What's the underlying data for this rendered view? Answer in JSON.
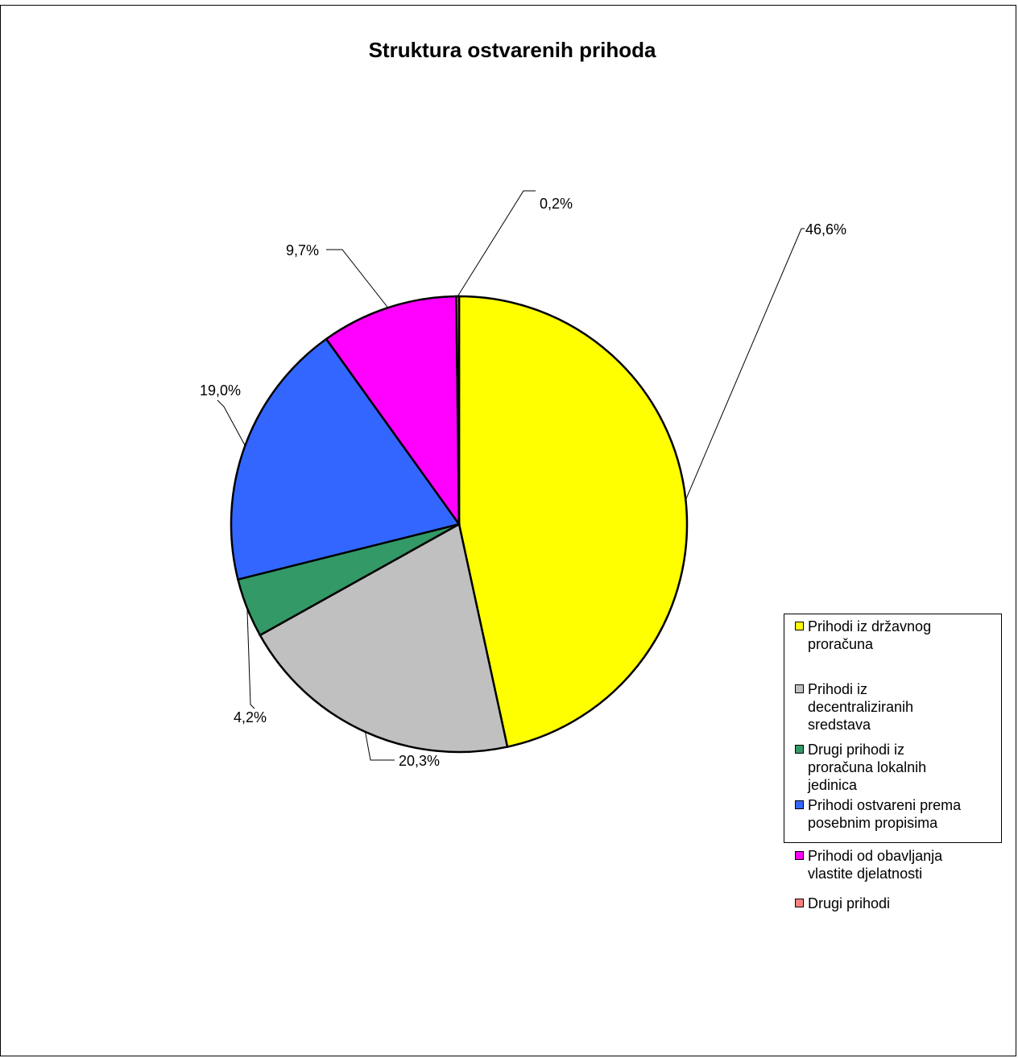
{
  "chart_data": {
    "type": "pie",
    "title": "Struktura ostvarenih prihoda",
    "slices": [
      {
        "name": "Prihodi iz državnog proračuna",
        "legend_label": "Prihodi iz državnog\nproračuna",
        "value": 46.6,
        "label": "46,6%",
        "color": "#FFFF00"
      },
      {
        "name": "Prihodi iz decentraliziranih sredstava",
        "legend_label": "Prihodi iz\ndecentraliziranih\nsredstava",
        "value": 20.3,
        "label": "20,3%",
        "color": "#C0C0C0"
      },
      {
        "name": "Drugi prihodi iz proračuna lokalnih jedinica",
        "legend_label": "Drugi prihodi iz\nproračuna lokalnih\njedinica",
        "value": 4.2,
        "label": "4,2%",
        "color": "#339966"
      },
      {
        "name": "Prihodi ostvareni prema posebnim propisima",
        "legend_label": "Prihodi ostvareni prema\nposebnim propisima",
        "value": 19.0,
        "label": "19,0%",
        "color": "#3366FF"
      },
      {
        "name": "Prihodi od obavljanja vlastite djelatnosti",
        "legend_label": "Prihodi od obavljanja\nvlastite djelatnosti",
        "value": 9.7,
        "label": "9,7%",
        "color": "#FF00FF"
      },
      {
        "name": "Drugi prihodi",
        "legend_label": "Drugi prihodi",
        "value": 0.2,
        "label": "0,2%",
        "color": "#FF8080"
      }
    ],
    "legend_position": "right"
  }
}
